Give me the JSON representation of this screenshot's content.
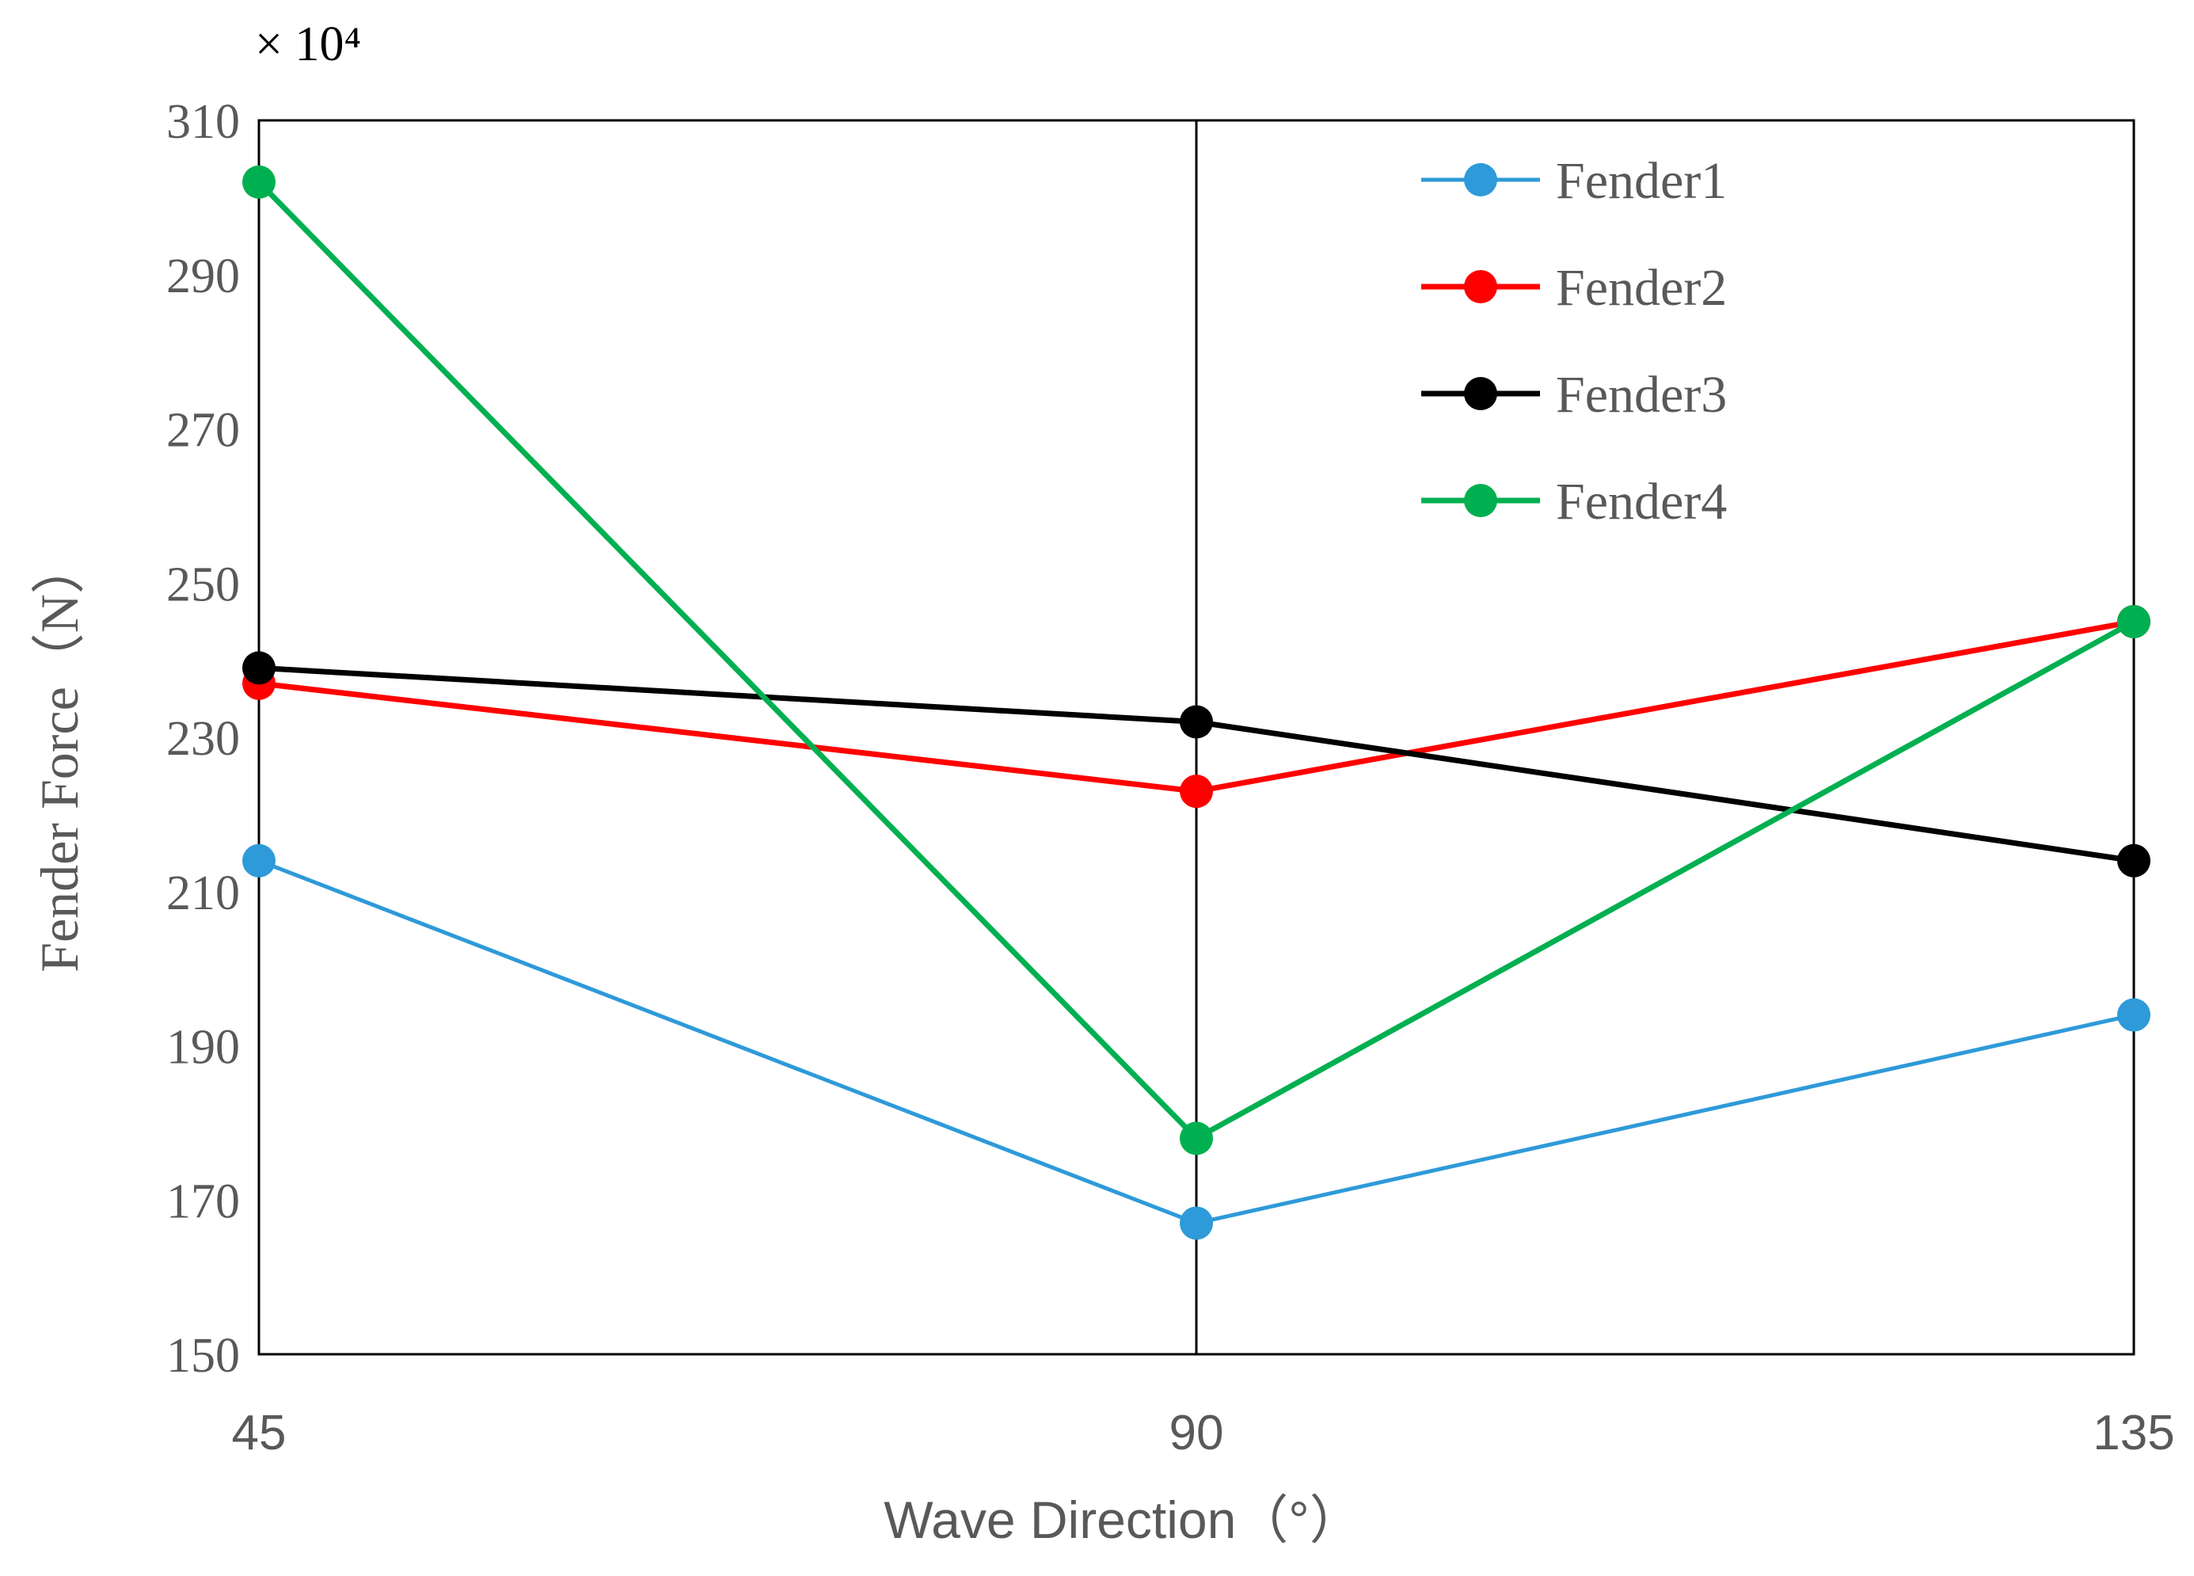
{
  "chart_data": {
    "type": "line",
    "x": [
      45,
      90,
      135
    ],
    "x_tick_labels": [
      "45",
      "90",
      "135"
    ],
    "xlabel": "Wave Direction（°）",
    "ylabel": "Fender Force（N）",
    "y_multiplier": "× 10⁴",
    "ylim": [
      150,
      310
    ],
    "y_ticks": [
      150,
      170,
      190,
      210,
      230,
      250,
      270,
      290,
      310
    ],
    "grid": "vertical line at 90",
    "legend_position": "top-right",
    "series": [
      {
        "name": "Fender1",
        "values": [
          214,
          167,
          194
        ],
        "color": "#2e9ad9"
      },
      {
        "name": "Fender2",
        "values": [
          237,
          223,
          245
        ],
        "color": "#ff0000"
      },
      {
        "name": "Fender3",
        "values": [
          239,
          232,
          214
        ],
        "color": "#000000"
      },
      {
        "name": "Fender4",
        "values": [
          302,
          178,
          245
        ],
        "color": "#00b050"
      }
    ]
  }
}
